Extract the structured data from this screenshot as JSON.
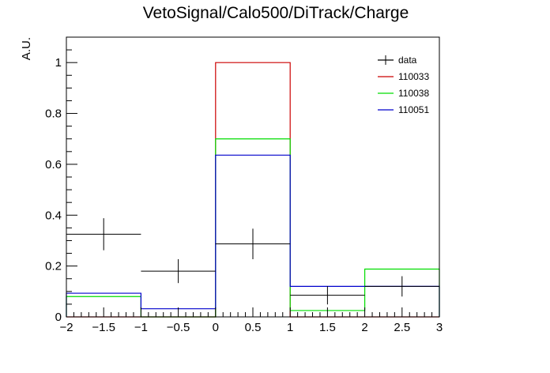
{
  "chart_data": {
    "type": "histogram",
    "title": "VetoSignal/Calo500/DiTrack/Charge",
    "ylabel": "A.U.",
    "xlabel": "",
    "xlim": [
      -2,
      3
    ],
    "ylim": [
      0,
      1.1
    ],
    "bin_edges": [
      -2,
      -1,
      0,
      1,
      2,
      3
    ],
    "x_ticks": [
      -2,
      -1.5,
      -1,
      -0.5,
      0,
      0.5,
      1,
      1.5,
      2,
      2.5,
      3
    ],
    "x_tick_labels": [
      "−2",
      "−1.5",
      "−1",
      "−0.5",
      "0",
      "0.5",
      "1",
      "1.5",
      "2",
      "2.5",
      "3"
    ],
    "y_ticks": [
      0,
      0.2,
      0.4,
      0.6,
      0.8,
      1
    ],
    "y_tick_labels": [
      "0",
      "0.2",
      "0.4",
      "0.6",
      "0.8",
      "1"
    ],
    "grid": false,
    "legend_position": "top-right",
    "series": [
      {
        "name": "data",
        "style": "points",
        "color": "#000000",
        "x": [
          -1.5,
          -0.5,
          0.5,
          1.5,
          2.5
        ],
        "values": [
          0.325,
          0.18,
          0.287,
          0.085,
          0.12
        ],
        "errors": [
          0.063,
          0.047,
          0.06,
          0.036,
          0.04
        ]
      },
      {
        "name": "110033",
        "style": "step",
        "color": "#cc0000",
        "values": [
          0,
          0,
          1.0,
          0,
          0
        ]
      },
      {
        "name": "110038",
        "style": "step",
        "color": "#00dd00",
        "values": [
          0.08,
          0,
          0.7,
          0.025,
          0.188
        ]
      },
      {
        "name": "110051",
        "style": "step",
        "color": "#0000cc",
        "values": [
          0.093,
          0.032,
          0.636,
          0.12,
          0.12
        ]
      }
    ]
  }
}
